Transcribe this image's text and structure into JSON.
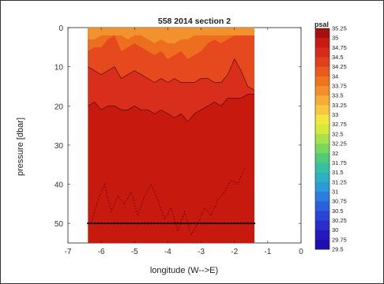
{
  "chart_data": {
    "type": "heatmap",
    "title": "558 2014 section 2",
    "xlabel": "longitude (W-->E)",
    "ylabel": "pressure [dbar]",
    "xlim": [
      -7,
      0
    ],
    "ylim": [
      0,
      55
    ],
    "y_reversed": true,
    "x_ticks": [
      -7,
      -6,
      -5,
      -4,
      -3,
      -2,
      -1,
      0
    ],
    "x_tick_labels": [
      "-7",
      "-6",
      "-5",
      "-4",
      "-3",
      "-2",
      "-1",
      "0"
    ],
    "y_ticks": [
      0,
      10,
      20,
      30,
      40,
      50
    ],
    "y_tick_labels": [
      "0",
      "10",
      "20",
      "30",
      "40",
      "50"
    ],
    "data_x_range": [
      -6.4,
      -1.4
    ],
    "sample_pressure": 50,
    "colorbar": {
      "title": "psal",
      "labels": [
        "35.25",
        "35",
        "34.75",
        "34.5",
        "34.25",
        "34",
        "33.75",
        "33.5",
        "33.25",
        "33",
        "32.75",
        "32.5",
        "32.25",
        "32",
        "31.75",
        "31.5",
        "31.25",
        "31",
        "30.75",
        "30.5",
        "30.25",
        "30",
        "29.75",
        "29.5"
      ],
      "colors": [
        "#a80f0f",
        "#c81a12",
        "#d82a1c",
        "#e2401c",
        "#ea5a1c",
        "#ef7420",
        "#f38e2a",
        "#f6ac35",
        "#f8c83c",
        "#f5e63e",
        "#d6ea3c",
        "#a6e24a",
        "#78d85e",
        "#4ecc7a",
        "#35c0a2",
        "#2ab2c4",
        "#2a9ad8",
        "#2a7ee0",
        "#2a60de",
        "#2a44d6",
        "#2a2ccc",
        "#2418c0",
        "#1c0eb0"
      ]
    },
    "layers": [
      {
        "salinity": 34.75,
        "color": "#d92e1c",
        "x": [
          -6.4,
          -6.2,
          -6.0,
          -5.8,
          -5.6,
          -5.4,
          -5.2,
          -5.0,
          -4.8,
          -4.6,
          -4.4,
          -4.2,
          -4.0,
          -3.8,
          -3.6,
          -3.4,
          -3.2,
          -3.0,
          -2.8,
          -2.6,
          -2.4,
          -2.2,
          -2.0,
          -1.8,
          -1.6,
          -1.4
        ],
        "bottom": [
          20,
          19,
          21,
          20,
          20,
          21,
          21,
          20,
          21,
          21,
          22,
          21,
          22,
          23,
          22,
          24,
          22,
          21,
          20,
          19,
          20,
          18,
          18,
          18,
          17,
          17
        ]
      },
      {
        "salinity": 34.5,
        "color": "#e5491d",
        "x": [
          -6.4,
          -6.2,
          -6.0,
          -5.8,
          -5.6,
          -5.4,
          -5.2,
          -5.0,
          -4.8,
          -4.6,
          -4.4,
          -4.2,
          -4.0,
          -3.8,
          -3.6,
          -3.4,
          -3.2,
          -3.0,
          -2.8,
          -2.6,
          -2.4,
          -2.2,
          -2.0,
          -1.8,
          -1.6,
          -1.4
        ],
        "bottom": [
          10,
          11,
          12,
          11,
          10,
          13,
          12,
          11,
          12,
          13,
          14,
          13,
          14,
          13,
          14,
          14,
          14,
          13,
          13,
          14,
          14,
          12,
          8,
          11,
          15,
          16
        ]
      },
      {
        "salinity": 34.25,
        "color": "#ee6e20",
        "x": [
          -6.4,
          -6.2,
          -6.0,
          -5.8,
          -5.6,
          -5.4,
          -5.2,
          -5.0,
          -4.8,
          -4.6,
          -4.4,
          -4.2,
          -4.0,
          -3.8,
          -3.6,
          -3.4,
          -3.2,
          -3.0,
          -2.8,
          -2.6,
          -2.4,
          -2.2,
          -2.0,
          -1.8,
          -1.6,
          -1.4
        ],
        "bottom": [
          6,
          5,
          5,
          3,
          2,
          6,
          5,
          4,
          5,
          6,
          7,
          6,
          8,
          7,
          6,
          8,
          7,
          6,
          4,
          3,
          4,
          3,
          2,
          2,
          2,
          2
        ]
      },
      {
        "salinity": 34.0,
        "color": "#f3912c",
        "x": [
          -6.4,
          -6.2,
          -6.0,
          -5.8,
          -5.6,
          -5.4,
          -5.2,
          -5.0,
          -4.8,
          -4.6,
          -4.4,
          -4.2,
          -4.0,
          -3.8,
          -3.6,
          -3.4,
          -3.2,
          -3.0,
          -2.8,
          -2.6,
          -2.4,
          -2.2,
          -2.0,
          -1.8,
          -1.6,
          -1.4
        ],
        "bottom": [
          3,
          3,
          2,
          2,
          2,
          2,
          3,
          2,
          2,
          3,
          4,
          3,
          4,
          4,
          3,
          3,
          2,
          2,
          2,
          2,
          2,
          2,
          2,
          2,
          2,
          2
        ]
      }
    ],
    "mixed_layer_line": {
      "x": [
        -6.3,
        -6.1,
        -5.9,
        -5.7,
        -5.5,
        -5.3,
        -5.1,
        -4.9,
        -4.7,
        -4.5,
        -4.3,
        -4.1,
        -3.9,
        -3.7,
        -3.5,
        -3.3,
        -3.1,
        -2.9,
        -2.7,
        -2.5,
        -2.3,
        -2.1,
        -1.9,
        -1.7
      ],
      "y": [
        50,
        44,
        40,
        47,
        43,
        45,
        42,
        48,
        43,
        40,
        44,
        49,
        46,
        52,
        47,
        53,
        50,
        46,
        48,
        44,
        42,
        39,
        40,
        36
      ]
    }
  }
}
